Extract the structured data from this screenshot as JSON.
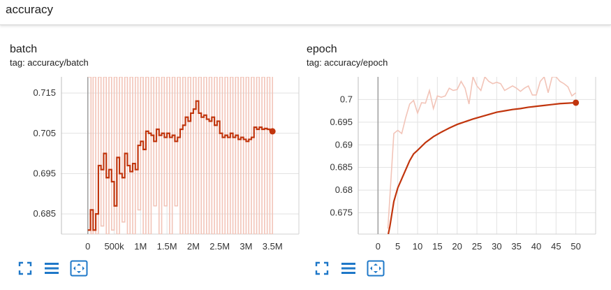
{
  "header": {
    "title": "accuracy"
  },
  "colors": {
    "line": "#c1350d",
    "faded": "#f2c4b8",
    "grid": "#e2e2e2",
    "icon": "#1f78c8"
  },
  "cards": [
    {
      "title": "batch",
      "tag": "tag: accuracy/batch",
      "tools": [
        "fullscreen-icon",
        "list-icon",
        "fit-domain-icon"
      ]
    },
    {
      "title": "epoch",
      "tag": "tag: accuracy/epoch",
      "tools": [
        "fullscreen-icon",
        "list-icon",
        "fit-domain-icon"
      ]
    }
  ],
  "chart_data": [
    {
      "type": "line",
      "title": "batch",
      "xlabel": "",
      "ylabel": "",
      "xlim": [
        -500000,
        4000000
      ],
      "ylim": [
        0.68,
        0.719
      ],
      "xticks": [
        0,
        500000,
        1000000,
        1500000,
        2000000,
        2500000,
        3000000,
        3500000
      ],
      "xtick_labels": [
        "0",
        "500k",
        "1M",
        "1.5M",
        "2M",
        "2.5M",
        "3M",
        "3.5M"
      ],
      "yticks": [
        0.685,
        0.695,
        0.705,
        0.715
      ],
      "ytick_labels": [
        "0.685",
        "0.695",
        "0.705",
        "0.715"
      ],
      "grid": true,
      "series": [
        {
          "role": "smoothed",
          "x": [
            0,
            50000,
            100000,
            150000,
            200000,
            250000,
            300000,
            350000,
            400000,
            450000,
            500000,
            550000,
            600000,
            650000,
            700000,
            750000,
            800000,
            850000,
            900000,
            950000,
            1000000,
            1050000,
            1100000,
            1150000,
            1200000,
            1250000,
            1300000,
            1350000,
            1400000,
            1450000,
            1500000,
            1550000,
            1600000,
            1650000,
            1700000,
            1750000,
            1800000,
            1850000,
            1900000,
            1950000,
            2000000,
            2050000,
            2100000,
            2150000,
            2200000,
            2250000,
            2300000,
            2350000,
            2400000,
            2450000,
            2500000,
            2550000,
            2600000,
            2650000,
            2700000,
            2750000,
            2800000,
            2850000,
            2900000,
            2950000,
            3000000,
            3050000,
            3100000,
            3150000,
            3200000,
            3250000,
            3300000,
            3350000,
            3400000,
            3450000,
            3500000
          ],
          "y": [
            0.681,
            0.686,
            0.681,
            0.685,
            0.697,
            0.696,
            0.7,
            0.694,
            0.696,
            0.693,
            0.687,
            0.699,
            0.695,
            0.694,
            0.7,
            0.697,
            0.6955,
            0.6975,
            0.696,
            0.702,
            0.703,
            0.701,
            0.7055,
            0.705,
            0.7045,
            0.703,
            0.706,
            0.7045,
            0.705,
            0.704,
            0.705,
            0.704,
            0.7045,
            0.703,
            0.704,
            0.706,
            0.707,
            0.709,
            0.708,
            0.71,
            0.711,
            0.713,
            0.71,
            0.709,
            0.7095,
            0.7085,
            0.708,
            0.709,
            0.707,
            0.708,
            0.705,
            0.704,
            0.7045,
            0.704,
            0.705,
            0.704,
            0.7045,
            0.7035,
            0.704,
            0.7035,
            0.703,
            0.7035,
            0.704,
            0.7065,
            0.706,
            0.7065,
            0.706,
            0.7062,
            0.706,
            0.7058,
            0.7055
          ]
        },
        {
          "role": "raw",
          "x": [
            0,
            60000,
            100000,
            150000,
            200000,
            250000,
            300000,
            350000,
            400000,
            450000,
            500000,
            550000,
            600000,
            650000,
            700000,
            750000,
            800000,
            850000,
            900000,
            950000,
            1000000,
            1050000,
            1100000,
            1150000,
            1200000,
            1250000,
            1300000,
            1350000,
            1400000,
            1450000,
            1500000,
            1550000,
            1600000,
            1650000,
            1700000,
            1750000,
            1800000,
            1850000,
            1900000,
            1950000,
            2000000,
            2050000,
            2100000,
            2150000,
            2200000,
            2250000,
            2300000,
            2350000,
            2400000,
            2450000,
            2500000,
            2550000,
            2600000,
            2650000,
            2700000,
            2750000,
            2800000,
            2850000,
            2900000,
            2950000,
            3000000,
            3050000,
            3100000,
            3150000,
            3200000,
            3250000,
            3300000,
            3350000,
            3400000,
            3450000,
            3500000
          ],
          "y": [
            0.719,
            0.68,
            0.719,
            0.68,
            0.719,
            0.682,
            0.719,
            0.68,
            0.719,
            0.681,
            0.719,
            0.68,
            0.719,
            0.683,
            0.719,
            0.68,
            0.719,
            0.68,
            0.719,
            0.686,
            0.719,
            0.68,
            0.719,
            0.68,
            0.719,
            0.687,
            0.719,
            0.68,
            0.719,
            0.687,
            0.719,
            0.68,
            0.719,
            0.687,
            0.719,
            0.68,
            0.719,
            0.68,
            0.719,
            0.68,
            0.719,
            0.68,
            0.719,
            0.68,
            0.719,
            0.68,
            0.719,
            0.68,
            0.719,
            0.68,
            0.719,
            0.68,
            0.719,
            0.68,
            0.719,
            0.68,
            0.719,
            0.68,
            0.719,
            0.68,
            0.719,
            0.68,
            0.719,
            0.68,
            0.719,
            0.68,
            0.719,
            0.68,
            0.719,
            0.68,
            0.719
          ]
        }
      ]
    },
    {
      "type": "line",
      "title": "epoch",
      "xlabel": "",
      "ylabel": "",
      "xlim": [
        -5,
        55
      ],
      "ylim": [
        0.6703,
        0.705
      ],
      "xticks": [
        0,
        5,
        10,
        15,
        20,
        25,
        30,
        35,
        40,
        45,
        50
      ],
      "xtick_labels": [
        "0",
        "5",
        "10",
        "15",
        "20",
        "25",
        "30",
        "35",
        "40",
        "45",
        "50"
      ],
      "yticks": [
        0.675,
        0.68,
        0.685,
        0.69,
        0.695,
        0.7
      ],
      "ytick_labels": [
        "0.675",
        "0.68",
        "0.685",
        "0.69",
        "0.695",
        "0.7"
      ],
      "grid": true,
      "series": [
        {
          "role": "smoothed",
          "x": [
            2.6,
            3,
            4,
            5,
            6,
            7,
            8,
            9,
            10,
            12,
            14,
            16,
            18,
            20,
            22,
            24,
            26,
            28,
            30,
            32,
            34,
            36,
            38,
            40,
            42,
            44,
            46,
            48,
            50
          ],
          "y": [
            0.6703,
            0.672,
            0.6775,
            0.6805,
            0.6825,
            0.6845,
            0.6865,
            0.688,
            0.6888,
            0.6905,
            0.6918,
            0.6928,
            0.6937,
            0.6945,
            0.6951,
            0.6957,
            0.6962,
            0.6967,
            0.6972,
            0.6975,
            0.6978,
            0.698,
            0.6983,
            0.6985,
            0.6987,
            0.6989,
            0.6991,
            0.6992,
            0.6993
          ]
        },
        {
          "role": "raw",
          "x": [
            2.5,
            4,
            5,
            6,
            7,
            8,
            9,
            10,
            11,
            12,
            13,
            14,
            15,
            16,
            17,
            18,
            19,
            20,
            21,
            22,
            23,
            24,
            25,
            26,
            27,
            28,
            29,
            30,
            31,
            32,
            33,
            34,
            35,
            36,
            37,
            38,
            39,
            40,
            41,
            42,
            43,
            44,
            45,
            46,
            47,
            48,
            49,
            50
          ],
          "y": [
            0.6715,
            0.6925,
            0.6932,
            0.6925,
            0.696,
            0.699,
            0.6998,
            0.697,
            0.6993,
            0.6992,
            0.702,
            0.698,
            0.7008,
            0.7005,
            0.7008,
            0.7025,
            0.702,
            0.7022,
            0.704,
            0.7025,
            0.699,
            0.705,
            0.703,
            0.702,
            0.705,
            0.704,
            0.7035,
            0.7038,
            0.7035,
            0.702,
            0.7025,
            0.703,
            0.7025,
            0.7018,
            0.7025,
            0.703,
            0.701,
            0.701,
            0.704,
            0.705,
            0.7015,
            0.705,
            0.705,
            0.704,
            0.7035,
            0.7028,
            0.7008,
            0.7015
          ]
        }
      ]
    }
  ]
}
